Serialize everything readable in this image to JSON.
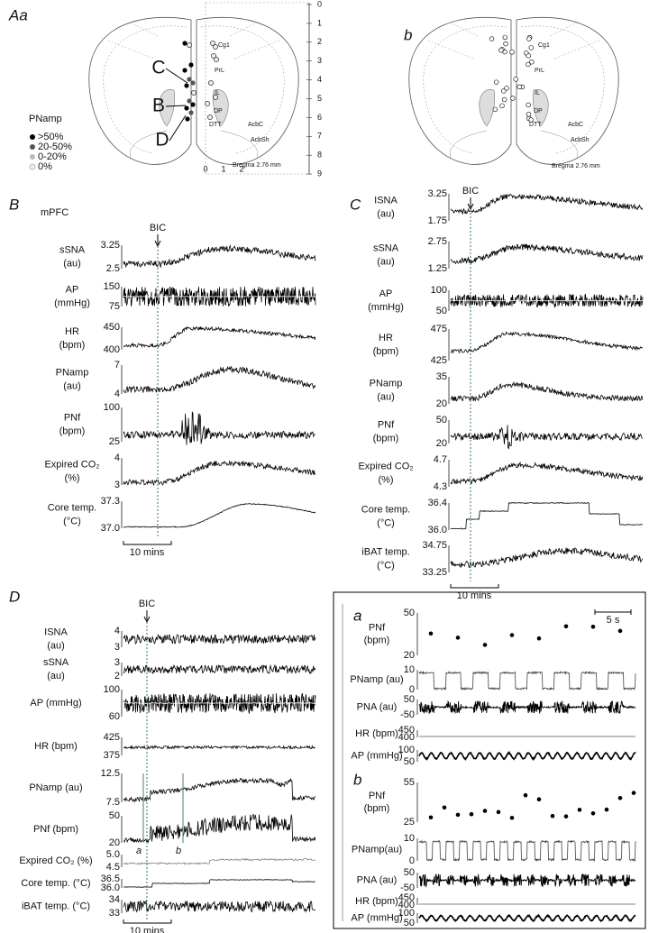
{
  "panel_A": {
    "label": "Aa",
    "label_b": "b",
    "regions": [
      "Cg1",
      "PrL",
      "IL",
      "DP",
      "DTT",
      "AcbC",
      "AcbSh"
    ],
    "bregma": "Bregma 2.76 mm",
    "depth_scale": [
      "0",
      "1",
      "2",
      "3",
      "4",
      "5",
      "6",
      "7",
      "8",
      "9"
    ],
    "lateral_scale": [
      "0",
      "1",
      "2"
    ],
    "sites": [
      "C",
      "B",
      "D"
    ],
    "legend": {
      "title": "PNamp",
      "items": [
        ">50%",
        "20-50%",
        "0-20%",
        "0%"
      ]
    }
  },
  "panel_B": {
    "label": "B",
    "region": "mPFC",
    "drug": "BIC",
    "scale_bar": "10 mins",
    "rows": [
      {
        "label": [
          "sSNA",
          "(au)"
        ],
        "ticks": [
          "3.25",
          "2.5"
        ]
      },
      {
        "label": [
          "AP",
          "(mmHg)"
        ],
        "ticks": [
          "150",
          "75"
        ]
      },
      {
        "label": [
          "HR",
          "(bpm)"
        ],
        "ticks": [
          "450",
          "400"
        ]
      },
      {
        "label": [
          "PNamp",
          "(au)"
        ],
        "ticks": [
          "7",
          "4"
        ]
      },
      {
        "label": [
          "PNf",
          "(bpm)"
        ],
        "ticks": [
          "100",
          "25"
        ]
      },
      {
        "label": [
          "Expired CO₂",
          "(%)"
        ],
        "ticks": [
          "4",
          "3"
        ]
      },
      {
        "label": [
          "Core temp.",
          "(°C)"
        ],
        "ticks": [
          "37.3",
          "37.0"
        ]
      }
    ]
  },
  "panel_C": {
    "label": "C",
    "drug": "BIC",
    "scale_bar": "10 mins",
    "rows": [
      {
        "label": [
          "ISNA",
          "(au)"
        ],
        "ticks": [
          "3.25",
          "1.75"
        ]
      },
      {
        "label": [
          "sSNA",
          "(au)"
        ],
        "ticks": [
          "2.75",
          "1.25"
        ]
      },
      {
        "label": [
          "AP",
          "(mmHg)"
        ],
        "ticks": [
          "100",
          "50"
        ]
      },
      {
        "label": [
          "HR",
          "(bpm)"
        ],
        "ticks": [
          "475",
          "425"
        ]
      },
      {
        "label": [
          "PNamp",
          "(au)"
        ],
        "ticks": [
          "35",
          "20"
        ]
      },
      {
        "label": [
          "PNf",
          "(bpm)"
        ],
        "ticks": [
          "50",
          "20"
        ]
      },
      {
        "label": [
          "Expired CO₂",
          "(%)"
        ],
        "ticks": [
          "4.7",
          "4.3"
        ]
      },
      {
        "label": [
          "Core temp.",
          "(°C)"
        ],
        "ticks": [
          "36.4",
          "36.0"
        ]
      },
      {
        "label": [
          "iBAT temp.",
          "(°C)"
        ],
        "ticks": [
          "34.75",
          "33.25"
        ]
      }
    ]
  },
  "panel_D": {
    "label": "D",
    "drug": "BIC",
    "scale_bar": "10 mins",
    "markers": [
      "a",
      "b"
    ],
    "rows": [
      {
        "label": [
          "ISNA",
          "(au)"
        ],
        "ticks": [
          "4",
          "3"
        ]
      },
      {
        "label": [
          "sSNA",
          "(au)"
        ],
        "ticks": [
          "3",
          "2"
        ]
      },
      {
        "label": [
          "AP (mmHg)"
        ],
        "ticks": [
          "100",
          "60"
        ]
      },
      {
        "label": [
          "HR (bpm)"
        ],
        "ticks": [
          "425",
          "375"
        ]
      },
      {
        "label": [
          "PNamp (au)"
        ],
        "ticks": [
          "12.5",
          "7.5"
        ]
      },
      {
        "label": [
          "PNf  (bpm)"
        ],
        "ticks": [
          "50",
          "20"
        ]
      },
      {
        "label": [
          "Expired CO₂ (%)"
        ],
        "ticks": [
          "5.0",
          "4.5"
        ]
      },
      {
        "label": [
          "Core temp. (°C)"
        ],
        "ticks": [
          "36.5",
          "36.0"
        ]
      },
      {
        "label": [
          "iBAT temp. (°C)"
        ],
        "ticks": [
          "34",
          "33"
        ]
      }
    ]
  },
  "inset": {
    "scale_bar": "5 s",
    "a": {
      "label": "a",
      "rows": [
        {
          "label": [
            "PNf",
            "(bpm)"
          ],
          "ticks": [
            "50",
            "20"
          ]
        },
        {
          "label": [
            "PNamp (au)"
          ],
          "ticks": [
            "10",
            "0"
          ]
        },
        {
          "label": [
            "PNA (au)"
          ],
          "ticks": [
            "50",
            "-50"
          ]
        },
        {
          "label": [
            "HR (bpm)"
          ],
          "ticks": [
            "450",
            "400"
          ]
        },
        {
          "label": [
            "AP (mmHg)"
          ],
          "ticks": [
            "100",
            "50"
          ]
        }
      ]
    },
    "b": {
      "label": "b",
      "rows": [
        {
          "label": [
            "PNf",
            "(bpm)"
          ],
          "ticks": [
            "55",
            "25"
          ]
        },
        {
          "label": [
            "PNamp(au)"
          ],
          "ticks": [
            "10",
            "0"
          ]
        },
        {
          "label": [
            "PNA (au)"
          ],
          "ticks": [
            "50",
            "-50"
          ]
        },
        {
          "label": [
            "HR (bpm)"
          ],
          "ticks": [
            "450",
            "400"
          ]
        },
        {
          "label": [
            "AP (mmHg)"
          ],
          "ticks": [
            "100",
            "50"
          ]
        }
      ]
    }
  }
}
